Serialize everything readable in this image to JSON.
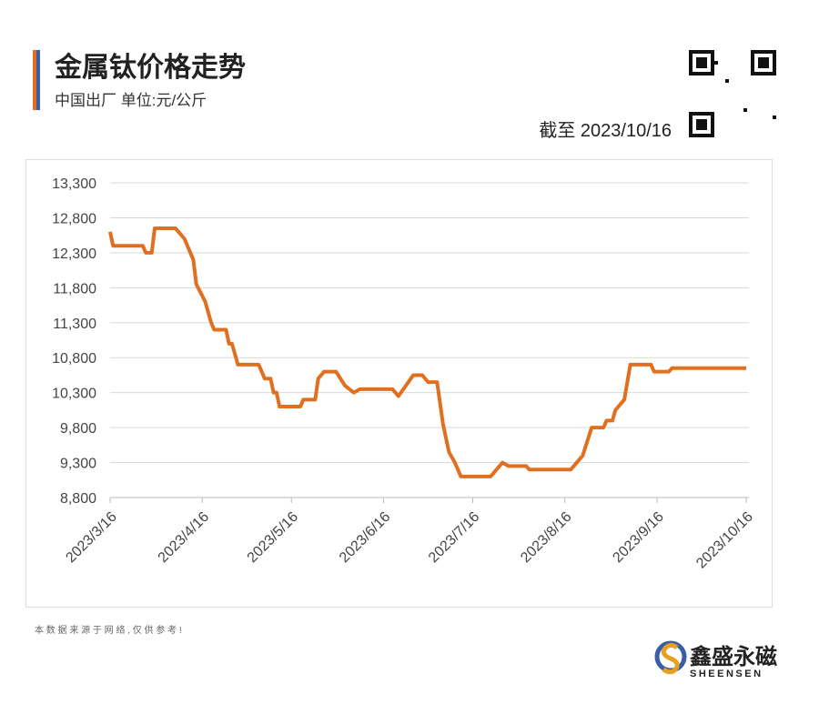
{
  "header": {
    "title": "金属钛价格走势",
    "subtitle": "中国出厂  单位:元/公斤",
    "as_of": "截至 2023/10/16"
  },
  "chart_data": {
    "type": "line",
    "x": [
      "2023/3/16",
      "2023/3/17",
      "2023/3/27",
      "2023/3/28",
      "2023/3/30",
      "2023/3/31",
      "2023/4/7",
      "2023/4/10",
      "2023/4/13",
      "2023/4/14",
      "2023/4/17",
      "2023/4/19",
      "2023/4/20",
      "2023/4/24",
      "2023/4/25",
      "2023/4/26",
      "2023/4/28",
      "2023/5/5",
      "2023/5/7",
      "2023/5/9",
      "2023/5/10",
      "2023/5/11",
      "2023/5/12",
      "2023/5/19",
      "2023/5/20",
      "2023/5/24",
      "2023/5/25",
      "2023/5/27",
      "2023/5/31",
      "2023/6/3",
      "2023/6/6",
      "2023/6/8",
      "2023/6/19",
      "2023/6/21",
      "2023/6/26",
      "2023/6/29",
      "2023/7/1",
      "2023/7/4",
      "2023/7/6",
      "2023/7/8",
      "2023/7/10",
      "2023/7/12",
      "2023/7/22",
      "2023/7/26",
      "2023/7/28",
      "2023/8/3",
      "2023/8/4",
      "2023/8/18",
      "2023/8/22",
      "2023/8/25",
      "2023/8/29",
      "2023/8/30",
      "2023/9/1",
      "2023/9/2",
      "2023/9/5",
      "2023/9/7",
      "2023/9/14",
      "2023/9/15",
      "2023/9/20",
      "2023/9/21",
      "2023/10/16"
    ],
    "series": [
      {
        "name": "金属钛",
        "color": "#e07020",
        "values": [
          12600,
          12400,
          12400,
          12300,
          12300,
          12650,
          12650,
          12500,
          12200,
          11850,
          11600,
          11300,
          11200,
          11200,
          11000,
          11000,
          10700,
          10700,
          10500,
          10500,
          10300,
          10300,
          10100,
          10100,
          10200,
          10200,
          10500,
          10600,
          10600,
          10400,
          10300,
          10350,
          10350,
          10250,
          10550,
          10550,
          10450,
          10450,
          9850,
          9450,
          9300,
          9100,
          9100,
          9300,
          9250,
          9250,
          9200,
          9200,
          9400,
          9800,
          9800,
          9900,
          9900,
          10050,
          10200,
          10700,
          10700,
          10600,
          10600,
          10650,
          10650
        ]
      }
    ],
    "xlim": [
      "2023/3/16",
      "2023/10/16"
    ],
    "xticks": [
      "2023/3/16",
      "2023/4/16",
      "2023/5/16",
      "2023/6/16",
      "2023/7/16",
      "2023/8/16",
      "2023/9/16",
      "2023/10/16"
    ],
    "ylim": [
      8800,
      13300
    ],
    "yticks": [
      {
        "value": 8800,
        "label": "8,800"
      },
      {
        "value": 9300,
        "label": "9,300"
      },
      {
        "value": 9800,
        "label": "9,800"
      },
      {
        "value": 10300,
        "label": "10,300"
      },
      {
        "value": 10800,
        "label": "10,800"
      },
      {
        "value": 11300,
        "label": "11,300"
      },
      {
        "value": 11800,
        "label": "11,800"
      },
      {
        "value": 12300,
        "label": "12,300"
      },
      {
        "value": 12800,
        "label": "12,800"
      },
      {
        "value": 13300,
        "label": "13,300"
      }
    ],
    "grid": true
  },
  "footer": {
    "note": "本 数 据 来 源 于 网 络 , 仅 供 参 考 !",
    "brand": "鑫盛永磁",
    "brand_en": "SHEENSEN"
  }
}
